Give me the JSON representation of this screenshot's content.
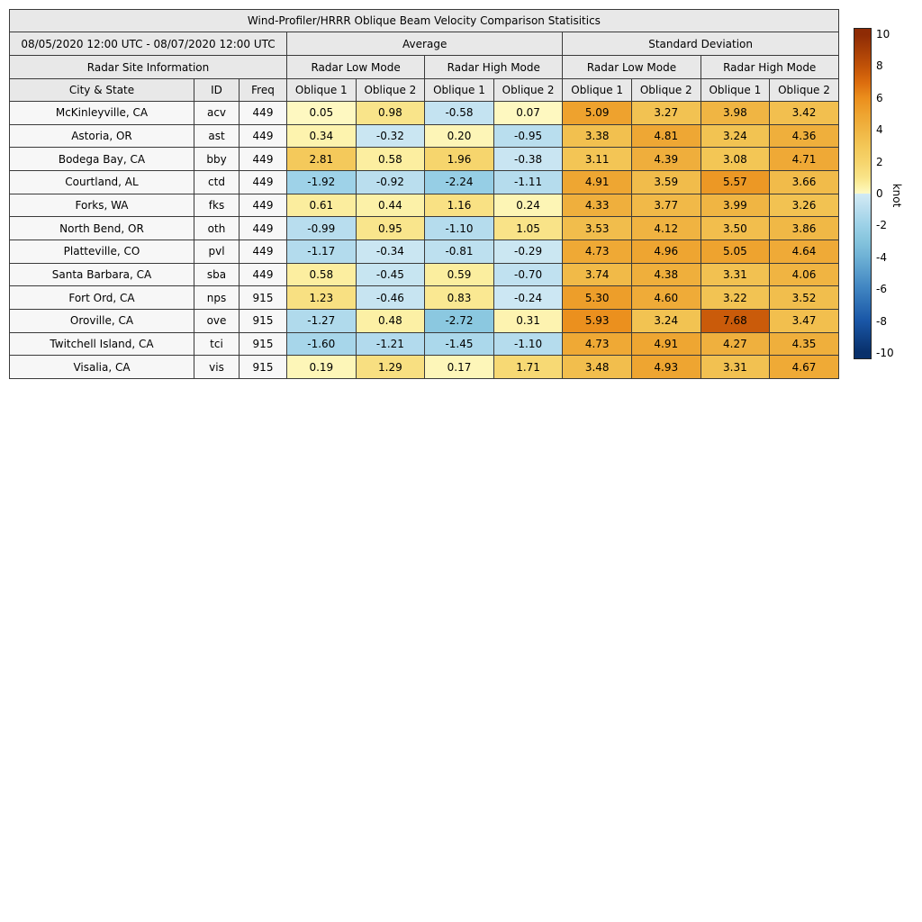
{
  "chart_data": {
    "type": "table",
    "title": "Wind-Profiler/HRRR Oblique Beam Velocity Comparison Statisitics",
    "header": {
      "date_range": "08/05/2020 12:00 UTC - 08/07/2020 12:00 UTC",
      "site_info_label": "Radar Site Information",
      "stat_groups": [
        "Average",
        "Standard Deviation"
      ],
      "mode_labels": [
        "Radar Low Mode",
        "Radar High Mode",
        "Radar Low Mode",
        "Radar High Mode"
      ],
      "site_columns": [
        "City & State",
        "ID",
        "Freq"
      ],
      "oblique_cols": [
        "Oblique 1",
        "Oblique 2",
        "Oblique 1",
        "Oblique 2",
        "Oblique 1",
        "Oblique 2",
        "Oblique 1",
        "Oblique 2"
      ]
    },
    "rows": [
      {
        "city": "McKinleyville, CA",
        "id": "acv",
        "freq": "449",
        "values": [
          0.05,
          0.98,
          -0.58,
          0.07,
          5.09,
          3.27,
          3.98,
          3.42
        ]
      },
      {
        "city": "Astoria, OR",
        "id": "ast",
        "freq": "449",
        "values": [
          0.34,
          -0.32,
          0.2,
          -0.95,
          3.38,
          4.81,
          3.24,
          4.36
        ]
      },
      {
        "city": "Bodega Bay, CA",
        "id": "bby",
        "freq": "449",
        "values": [
          2.81,
          0.58,
          1.96,
          -0.38,
          3.11,
          4.39,
          3.08,
          4.71
        ]
      },
      {
        "city": "Courtland, AL",
        "id": "ctd",
        "freq": "449",
        "values": [
          -1.92,
          -0.92,
          -2.24,
          -1.11,
          4.91,
          3.59,
          5.57,
          3.66
        ]
      },
      {
        "city": "Forks, WA",
        "id": "fks",
        "freq": "449",
        "values": [
          0.61,
          0.44,
          1.16,
          0.24,
          4.33,
          3.77,
          3.99,
          3.26
        ]
      },
      {
        "city": "North Bend, OR",
        "id": "oth",
        "freq": "449",
        "values": [
          -0.99,
          0.95,
          -1.1,
          1.05,
          3.53,
          4.12,
          3.5,
          3.86
        ]
      },
      {
        "city": "Platteville, CO",
        "id": "pvl",
        "freq": "449",
        "values": [
          -1.17,
          -0.34,
          -0.81,
          -0.29,
          4.73,
          4.96,
          5.05,
          4.64
        ]
      },
      {
        "city": "Santa Barbara, CA",
        "id": "sba",
        "freq": "449",
        "values": [
          0.58,
          -0.45,
          0.59,
          -0.7,
          3.74,
          4.38,
          3.31,
          4.06
        ]
      },
      {
        "city": "Fort Ord, CA",
        "id": "nps",
        "freq": "915",
        "values": [
          1.23,
          -0.46,
          0.83,
          -0.24,
          5.3,
          4.6,
          3.22,
          3.52
        ]
      },
      {
        "city": "Oroville, CA",
        "id": "ove",
        "freq": "915",
        "values": [
          -1.27,
          0.48,
          -2.72,
          0.31,
          5.93,
          3.24,
          7.68,
          3.47
        ]
      },
      {
        "city": "Twitchell Island, CA",
        "id": "tci",
        "freq": "915",
        "values": [
          -1.6,
          -1.21,
          -1.45,
          -1.1,
          4.73,
          4.91,
          4.27,
          4.35
        ]
      },
      {
        "city": "Visalia, CA",
        "id": "vis",
        "freq": "915",
        "values": [
          0.19,
          1.29,
          0.17,
          1.71,
          3.48,
          4.93,
          3.31,
          4.67
        ]
      }
    ],
    "colorbar": {
      "label": "knot",
      "min": -10,
      "max": 10,
      "ticks": [
        10,
        8,
        6,
        4,
        2,
        0,
        -2,
        -4,
        -6,
        -8,
        -10
      ],
      "positive_stops": [
        [
          0,
          "#FEF9C4"
        ],
        [
          0.5,
          "#FCF0A4"
        ],
        [
          1,
          "#F9E489"
        ],
        [
          2,
          "#F6D46C"
        ],
        [
          3,
          "#F3C757"
        ],
        [
          4,
          "#F0B543"
        ],
        [
          5,
          "#EEA430"
        ],
        [
          6,
          "#EB8F1D"
        ],
        [
          7,
          "#DC6D0E"
        ],
        [
          8,
          "#C25308"
        ],
        [
          10,
          "#8E2B05"
        ]
      ],
      "negative_stops": [
        [
          -10,
          "#08306B"
        ],
        [
          -8,
          "#1A57A7"
        ],
        [
          -6,
          "#3F84C1"
        ],
        [
          -4,
          "#6EB1D5"
        ],
        [
          -3,
          "#85C4DD"
        ],
        [
          -2,
          "#9CD1E7"
        ],
        [
          -1,
          "#B8DDEE"
        ],
        [
          -0.5,
          "#C6E4F1"
        ],
        [
          0,
          "#D2EAF4"
        ]
      ]
    },
    "style_colors": {
      "header_bg": "#e8e8e8",
      "site_cell_bg": "#f7f7f7",
      "grid_line": "#3a3a3a",
      "text": "#000000"
    }
  }
}
